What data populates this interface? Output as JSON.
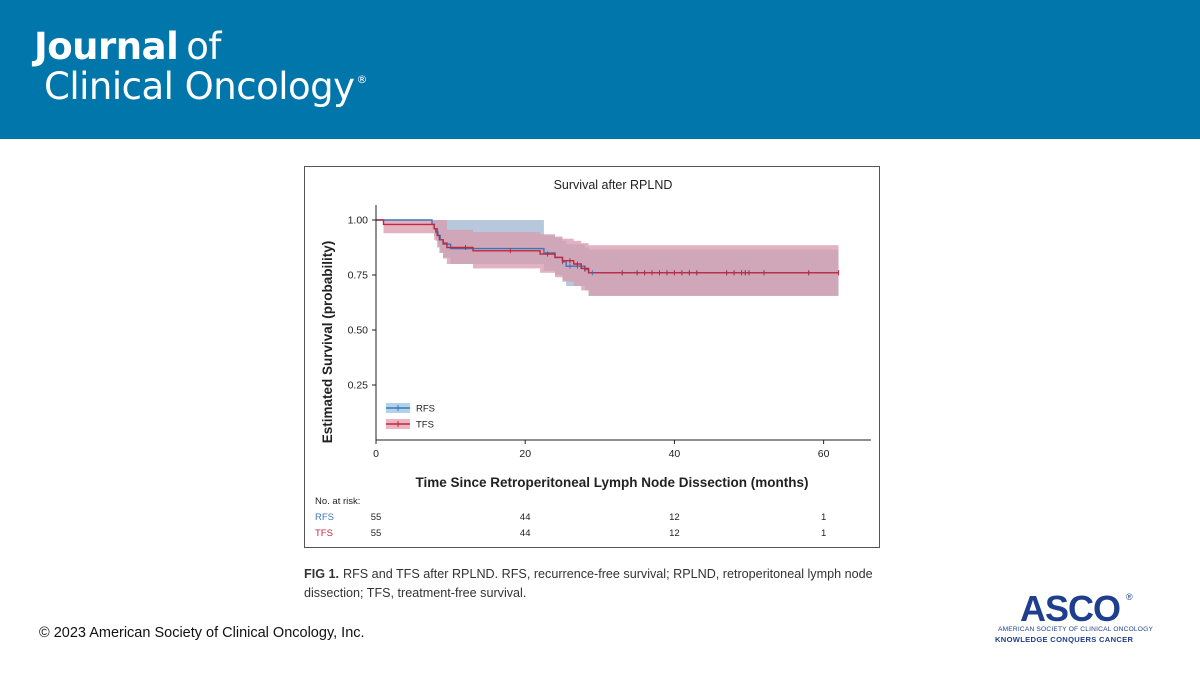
{
  "colors": {
    "header_bg": "#0076AB",
    "rfs": "#3F75B7",
    "tfs": "#C0283E",
    "rfs_band": "#9CC8E4",
    "tfs_band": "#E8A3B3",
    "overlap_band": "#C09BAE",
    "asco_blue": "#1E3F8E"
  },
  "header": {
    "journal_bold": "Journal",
    "journal_of": "of",
    "journal_line2": "Clinical Oncology",
    "registered": "®"
  },
  "chart_data": {
    "type": "line",
    "subtype": "kaplan-meier",
    "title": "Survival after RPLND",
    "xlabel": "Time Since Retroperitoneal Lymph Node Dissection (months)",
    "ylabel": "Estimated Survival (probability)",
    "xlim": [
      0,
      63
    ],
    "ylim": [
      0,
      1.05
    ],
    "xticks": [
      0,
      20,
      40,
      60
    ],
    "yticks": [
      0.25,
      0.5,
      0.75,
      1.0
    ],
    "ytick_labels": [
      "0.25",
      "0.50",
      "0.75",
      "1.00"
    ],
    "grid": false,
    "legend_position": "bottom-left",
    "series": [
      {
        "name": "RFS",
        "color_key": "rfs",
        "steps": [
          [
            0,
            1.0
          ],
          [
            7.5,
            0.98
          ],
          [
            7.8,
            0.96
          ],
          [
            8.0,
            0.945
          ],
          [
            8.3,
            0.93
          ],
          [
            8.6,
            0.91
          ],
          [
            9.0,
            0.89
          ],
          [
            10.0,
            0.87
          ],
          [
            22.5,
            0.85
          ],
          [
            24.0,
            0.83
          ],
          [
            25.0,
            0.81
          ],
          [
            25.5,
            0.79
          ],
          [
            28.0,
            0.775
          ],
          [
            28.5,
            0.76
          ],
          [
            62.0,
            0.76
          ]
        ],
        "ci_lower": [
          [
            0,
            1.0
          ],
          [
            7.5,
            0.96
          ],
          [
            7.8,
            0.93
          ],
          [
            8.0,
            0.905
          ],
          [
            8.3,
            0.88
          ],
          [
            8.6,
            0.855
          ],
          [
            9.0,
            0.83
          ],
          [
            10.0,
            0.8
          ],
          [
            22.5,
            0.77
          ],
          [
            24.0,
            0.75
          ],
          [
            25.0,
            0.725
          ],
          [
            25.5,
            0.7
          ],
          [
            28.0,
            0.68
          ],
          [
            28.5,
            0.655
          ],
          [
            62.0,
            0.655
          ]
        ],
        "ci_upper": [
          [
            0,
            1.0
          ],
          [
            7.5,
            1.0
          ],
          [
            22.5,
            0.93
          ],
          [
            24.0,
            0.92
          ],
          [
            25.0,
            0.905
          ],
          [
            25.5,
            0.89
          ],
          [
            28.0,
            0.875
          ],
          [
            28.5,
            0.865
          ],
          [
            62.0,
            0.865
          ]
        ],
        "censor_times": [
          25,
          26,
          27,
          28,
          29,
          33,
          35,
          36,
          37,
          38,
          39,
          40,
          41,
          42,
          43,
          47,
          48,
          49,
          49.5,
          50,
          52,
          58,
          62
        ]
      },
      {
        "name": "TFS",
        "color_key": "tfs",
        "steps": [
          [
            0,
            1.0
          ],
          [
            1.0,
            0.98
          ],
          [
            7.8,
            0.96
          ],
          [
            8.2,
            0.93
          ],
          [
            8.5,
            0.91
          ],
          [
            9.0,
            0.895
          ],
          [
            9.5,
            0.875
          ],
          [
            13.0,
            0.86
          ],
          [
            22.0,
            0.845
          ],
          [
            24.0,
            0.83
          ],
          [
            25.0,
            0.815
          ],
          [
            26.5,
            0.8
          ],
          [
            27.5,
            0.78
          ],
          [
            28.5,
            0.76
          ],
          [
            62.0,
            0.76
          ]
        ],
        "ci_lower": [
          [
            0,
            1.0
          ],
          [
            1.0,
            0.94
          ],
          [
            7.8,
            0.91
          ],
          [
            8.2,
            0.875
          ],
          [
            8.5,
            0.85
          ],
          [
            9.0,
            0.825
          ],
          [
            9.5,
            0.8
          ],
          [
            13.0,
            0.78
          ],
          [
            22.0,
            0.76
          ],
          [
            24.0,
            0.74
          ],
          [
            25.0,
            0.72
          ],
          [
            26.5,
            0.7
          ],
          [
            27.5,
            0.68
          ],
          [
            28.5,
            0.655
          ],
          [
            62.0,
            0.655
          ]
        ],
        "ci_upper": [
          [
            0,
            1.0
          ],
          [
            1.0,
            1.0
          ],
          [
            9.5,
            0.955
          ],
          [
            13.0,
            0.945
          ],
          [
            22.0,
            0.935
          ],
          [
            24.0,
            0.925
          ],
          [
            25.0,
            0.915
          ],
          [
            26.5,
            0.905
          ],
          [
            27.5,
            0.895
          ],
          [
            28.5,
            0.885
          ],
          [
            62.0,
            0.885
          ]
        ],
        "censor_times": [
          12,
          18,
          23,
          25,
          26,
          27,
          28,
          33,
          35,
          36,
          37,
          38,
          39,
          40,
          41,
          42,
          43,
          47,
          48,
          49,
          49.5,
          50,
          52,
          58,
          62
        ]
      }
    ],
    "risk_table": {
      "label": "No. at risk:",
      "times": [
        0,
        20,
        40,
        60
      ],
      "rows": [
        {
          "name": "RFS",
          "color_key": "rfs",
          "values": [
            "55",
            "44",
            "12",
            "1"
          ]
        },
        {
          "name": "TFS",
          "color_key": "tfs",
          "values": [
            "55",
            "44",
            "12",
            "1"
          ]
        }
      ]
    }
  },
  "caption": {
    "label": "FIG 1.",
    "text": "RFS and TFS after RPLND. RFS, recurrence-free survival; RPLND, retroperitoneal lymph node dissection; TFS, treatment-free survival."
  },
  "footer": {
    "copyright": "© 2023 American Society of Clinical Oncology, Inc."
  },
  "asco": {
    "name": "ASCO",
    "registered": "®",
    "line1": "AMERICAN SOCIETY OF CLINICAL ONCOLOGY",
    "line2": "KNOWLEDGE CONQUERS CANCER"
  }
}
